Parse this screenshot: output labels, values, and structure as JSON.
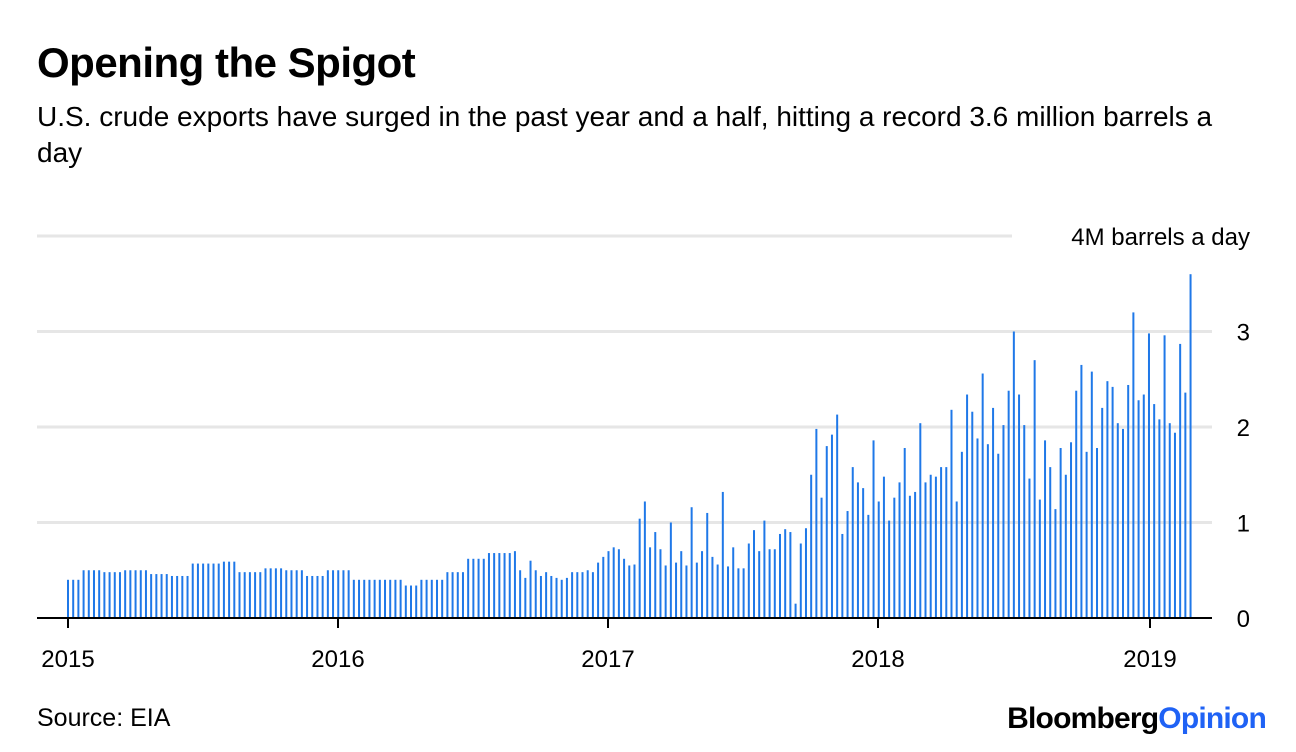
{
  "header": {
    "title": "Opening the Spigot",
    "subtitle": "U.S. crude exports have surged in the past year and a half, hitting a record 3.6 million barrels a day"
  },
  "footer": {
    "source": "Source: EIA",
    "brand_part1": "Bloomberg",
    "brand_part2": "Opinion"
  },
  "colors": {
    "bar": "#1f78e8",
    "grid": "#e6e6e6",
    "axis": "#000000",
    "brand_accent": "#1f62f5"
  },
  "chart_data": {
    "type": "bar",
    "title": "Opening the Spigot",
    "subtitle": "U.S. crude exports have surged in the past year and a half, hitting a record 3.6 million barrels a day",
    "xlabel": "",
    "ylabel": "",
    "ylim": [
      0,
      4
    ],
    "yticks": [
      {
        "value": 0,
        "label": "0"
      },
      {
        "value": 1,
        "label": "1"
      },
      {
        "value": 2,
        "label": "2"
      },
      {
        "value": 3,
        "label": "3"
      },
      {
        "value": 4,
        "label": "4M barrels a day"
      }
    ],
    "xticks": [
      "2015",
      "2016",
      "2017",
      "2018",
      "2019"
    ],
    "grid": true,
    "series": [
      {
        "frequency": "weekly, first week of January 2015 through mid-February 2019",
        "values": [
          0.4,
          0.4,
          0.4,
          0.5,
          0.5,
          0.5,
          0.5,
          0.48,
          0.48,
          0.48,
          0.48,
          0.5,
          0.5,
          0.5,
          0.5,
          0.5,
          0.46,
          0.46,
          0.46,
          0.46,
          0.44,
          0.44,
          0.44,
          0.44,
          0.57,
          0.57,
          0.57,
          0.57,
          0.57,
          0.57,
          0.59,
          0.59,
          0.59,
          0.48,
          0.48,
          0.48,
          0.48,
          0.48,
          0.52,
          0.52,
          0.52,
          0.52,
          0.5,
          0.5,
          0.5,
          0.5,
          0.44,
          0.44,
          0.44,
          0.44,
          0.5,
          0.5,
          0.5,
          0.5,
          0.5,
          0.4,
          0.4,
          0.4,
          0.4,
          0.4,
          0.4,
          0.4,
          0.4,
          0.4,
          0.4,
          0.34,
          0.34,
          0.34,
          0.4,
          0.4,
          0.4,
          0.4,
          0.4,
          0.48,
          0.48,
          0.48,
          0.48,
          0.62,
          0.62,
          0.62,
          0.62,
          0.68,
          0.68,
          0.68,
          0.68,
          0.68,
          0.7,
          0.5,
          0.42,
          0.6,
          0.5,
          0.44,
          0.48,
          0.44,
          0.42,
          0.4,
          0.42,
          0.48,
          0.48,
          0.48,
          0.5,
          0.48,
          0.58,
          0.64,
          0.7,
          0.74,
          0.72,
          0.62,
          0.55,
          0.56,
          1.04,
          1.22,
          0.74,
          0.9,
          0.72,
          0.55,
          1.0,
          0.58,
          0.7,
          0.55,
          1.16,
          0.58,
          0.7,
          1.1,
          0.64,
          0.56,
          1.32,
          0.54,
          0.74,
          0.52,
          0.52,
          0.78,
          0.92,
          0.7,
          1.02,
          0.72,
          0.72,
          0.88,
          0.93,
          0.9,
          0.15,
          0.78,
          0.94,
          1.5,
          1.98,
          1.26,
          1.8,
          1.92,
          2.13,
          0.88,
          1.12,
          1.58,
          1.42,
          1.36,
          1.08,
          1.86,
          1.22,
          1.48,
          1.02,
          1.26,
          1.42,
          1.78,
          1.28,
          1.32,
          2.04,
          1.42,
          1.5,
          1.48,
          1.58,
          1.58,
          2.18,
          1.22,
          1.74,
          2.34,
          2.16,
          1.88,
          2.56,
          1.82,
          2.2,
          1.72,
          2.02,
          2.38,
          3.0,
          2.34,
          2.02,
          1.46,
          2.7,
          1.24,
          1.86,
          1.58,
          1.14,
          1.78,
          1.5,
          1.84,
          2.38,
          2.65,
          1.74,
          2.58,
          1.78,
          2.2,
          2.48,
          2.42,
          2.04,
          1.98,
          2.44,
          3.2,
          2.28,
          2.34,
          2.98,
          2.24,
          2.08,
          2.96,
          2.04,
          1.94,
          2.87,
          2.36,
          3.6
        ]
      }
    ]
  }
}
